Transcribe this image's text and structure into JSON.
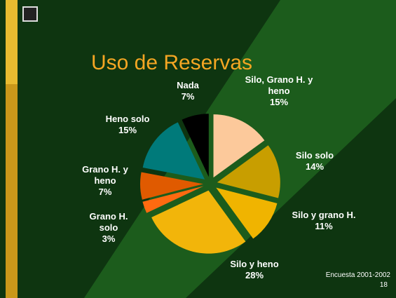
{
  "chart_data": {
    "type": "pie",
    "title": "Uso de Reservas",
    "categories": [
      "Silo, Grano H. y heno",
      "Silo solo",
      "Silo y grano H.",
      "Silo y heno",
      "Grano H. solo",
      "Grano H. y heno",
      "Heno solo",
      "Nada"
    ],
    "values": [
      15,
      14,
      11,
      28,
      3,
      7,
      15,
      7
    ],
    "value_labels": [
      "15%",
      "14%",
      "11%",
      "28%",
      "3%",
      "7%",
      "15%",
      "7%"
    ],
    "colors": [
      "#fcc99b",
      "#c89e00",
      "#f0b400",
      "#f2b50a",
      "#ff6a10",
      "#e05a00",
      "#007a7a",
      "#000000"
    ],
    "footer": {
      "source": "Encuesta 2001-2002",
      "page": "18"
    }
  }
}
